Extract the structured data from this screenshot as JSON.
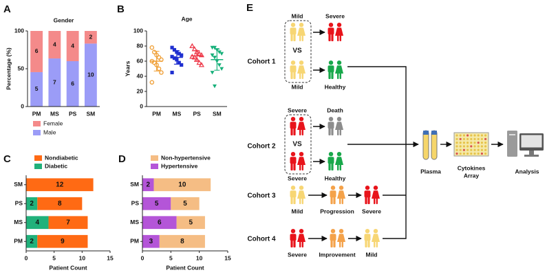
{
  "chart_data": [
    {
      "panel": "A",
      "type": "stacked_bar",
      "title": "Gender",
      "ylabel": "Percentage (%)",
      "categories": [
        "PM",
        "MS",
        "PS",
        "SM"
      ],
      "ylim": [
        0,
        100
      ],
      "yticks": [
        0,
        50,
        100
      ],
      "legend": "bottom",
      "series": [
        {
          "name": "Male",
          "color": "#9b9cf7",
          "values": [
            45.5,
            63.6,
            60,
            83.3
          ],
          "counts": [
            5,
            7,
            6,
            10
          ]
        },
        {
          "name": "Female",
          "color": "#f48a8a",
          "values": [
            54.5,
            36.4,
            40,
            16.7
          ],
          "counts": [
            6,
            4,
            4,
            2
          ]
        }
      ]
    },
    {
      "panel": "B",
      "type": "dot_plot",
      "title": "Age",
      "ylabel": "Years",
      "categories": [
        "PM",
        "MS",
        "PS",
        "SM"
      ],
      "ylim": [
        0,
        100
      ],
      "yticks": [
        0,
        20,
        40,
        60,
        80,
        100
      ],
      "groups": [
        {
          "color": "#f0a23c",
          "marker": "circle",
          "values": [
            78,
            72,
            68,
            65,
            62,
            60,
            58,
            55,
            50,
            45,
            32
          ],
          "mean": 60,
          "sd": 13
        },
        {
          "color": "#1f2fd0",
          "marker": "square",
          "values": [
            78,
            75,
            72,
            70,
            68,
            66,
            64,
            62,
            58,
            55,
            45
          ],
          "mean": 65,
          "sd": 9
        },
        {
          "color": "#ee3b4b",
          "marker": "triangle-up",
          "values": [
            80,
            76,
            72,
            70,
            68,
            66,
            65,
            62,
            58,
            55
          ],
          "mean": 67,
          "sd": 7
        },
        {
          "color": "#17b07a",
          "marker": "triangle-down",
          "values": [
            78,
            78,
            75,
            72,
            70,
            68,
            65,
            60,
            55,
            50,
            45,
            27
          ],
          "mean": 62,
          "sd": 14
        }
      ]
    },
    {
      "panel": "C",
      "type": "horizontal_stacked_bar",
      "xlabel": "Patient Count",
      "categories": [
        "PM",
        "MS",
        "PS",
        "SM"
      ],
      "xlim": [
        0,
        15
      ],
      "xticks": [
        0,
        5,
        10,
        15
      ],
      "legend": "top",
      "series": [
        {
          "name": "Diabetic",
          "color": "#21b17b",
          "values": [
            2,
            4,
            2,
            0
          ]
        },
        {
          "name": "Nondiabetic",
          "color": "#ff6a14",
          "values": [
            9,
            7,
            8,
            12
          ]
        }
      ]
    },
    {
      "panel": "D",
      "type": "horizontal_stacked_bar",
      "xlabel": "Patient Count",
      "categories": [
        "PM",
        "MS",
        "PS",
        "SM"
      ],
      "xlim": [
        0,
        15
      ],
      "xticks": [
        0,
        5,
        10,
        15
      ],
      "legend": "top",
      "series": [
        {
          "name": "Hypertensive",
          "color": "#b455d8",
          "values": [
            3,
            6,
            5,
            2
          ]
        },
        {
          "name": "Non-hypertensive",
          "color": "#f5bd84",
          "values": [
            8,
            5,
            5,
            10
          ]
        }
      ]
    }
  ],
  "diagram": {
    "panel": "E",
    "cohorts": [
      {
        "label": "Cohort 1",
        "compare_top": "Mild",
        "versus": "VS",
        "compare_bottom": "Mild",
        "outcome_top": "Severe",
        "outcome_bottom": "Healthy"
      },
      {
        "label": "Cohort 2",
        "compare_top": "Severe",
        "versus": "VS",
        "compare_bottom": "Severe",
        "outcome_top": "Death",
        "outcome_bottom": "Healthy"
      },
      {
        "label": "Cohort 3",
        "stages": [
          "Mild",
          "Progression",
          "Severe"
        ]
      },
      {
        "label": "Cohort 4",
        "stages": [
          "Severe",
          "Improvement",
          "Mild"
        ]
      }
    ],
    "pipeline": {
      "plasma": "Plasma",
      "array": [
        "Cytokines",
        "Array"
      ],
      "analysis": "Analysis"
    }
  }
}
